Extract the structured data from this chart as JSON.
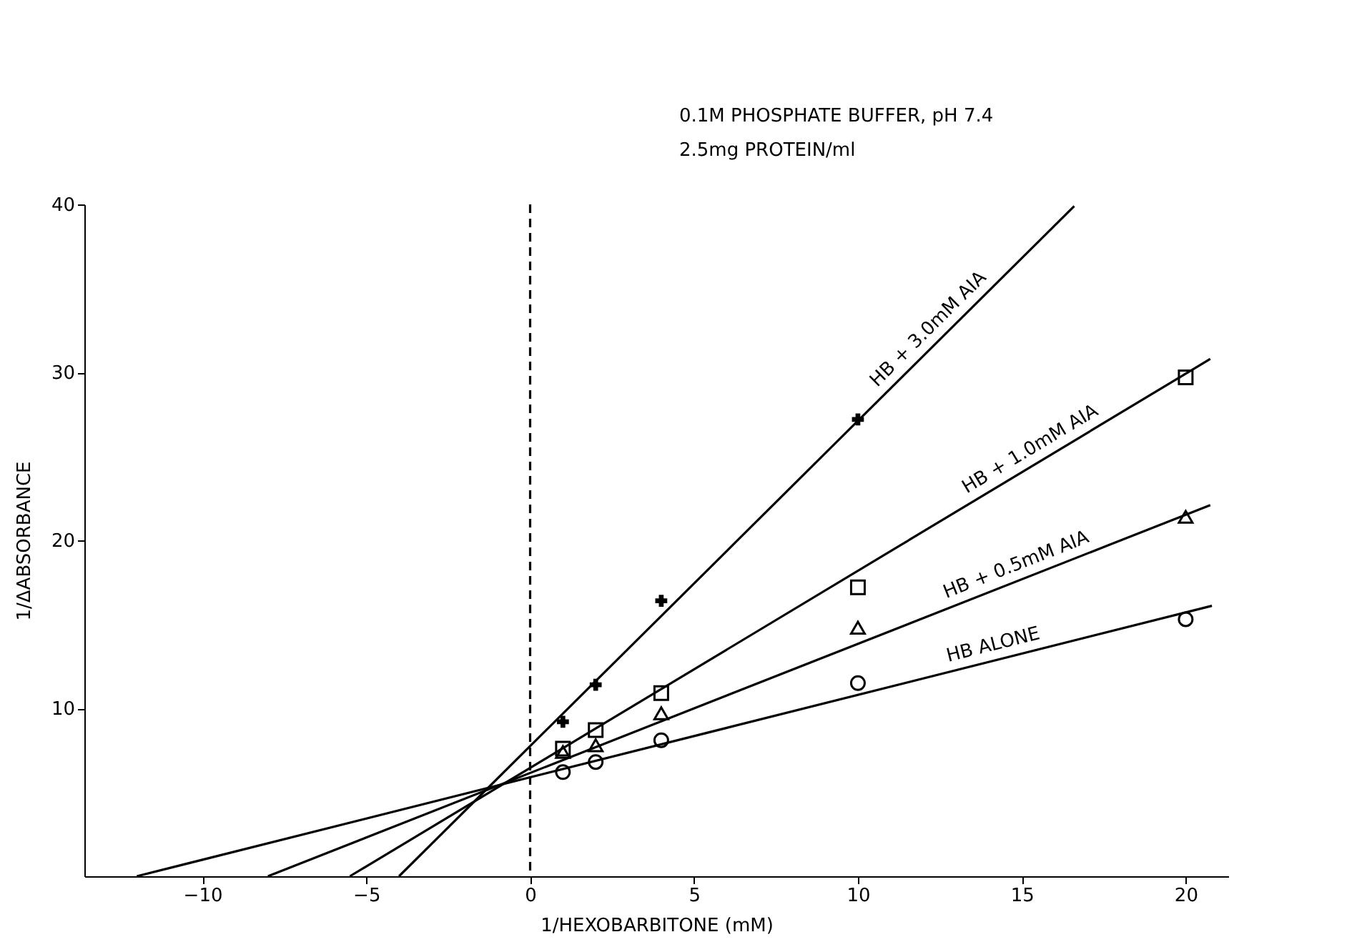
{
  "chart_data": {
    "type": "scatter",
    "xlabel": "1/HEXOBARBITONE (mM)",
    "ylabel": "1/ΔABSORBANCE",
    "annotations": [
      "0.1M PHOSPHATE BUFFER, pH 7.4",
      "2.5mg PROTEIN/ml"
    ],
    "series": [
      {
        "marker": "circle",
        "color": "#000000",
        "x": [
          1,
          2,
          4,
          10,
          20
        ],
        "values": [
          6.2,
          6.8,
          8.1,
          11.5,
          15.3
        ]
      },
      {
        "marker": "triangle",
        "color": "#000000",
        "x": [
          1,
          2,
          4,
          10,
          20
        ],
        "values": [
          7.4,
          7.8,
          9.7,
          14.8,
          21.4
        ]
      },
      {
        "marker": "square",
        "color": "#000000",
        "x": [
          1,
          2,
          4,
          10,
          20
        ],
        "values": [
          7.6,
          8.7,
          10.9,
          17.2,
          29.7
        ]
      },
      {
        "marker": "cross",
        "color": "#000000",
        "x": [
          1,
          2,
          4,
          10
        ],
        "values": [
          9.2,
          11.4,
          16.4,
          27.2
        ]
      },
      {
        "type": "line",
        "name": "HB ALONE",
        "color": "#000000",
        "x": [
          -12.0,
          20.8
        ],
        "values": [
          0,
          16.1
        ]
      },
      {
        "type": "line",
        "name": "HB + 0.5mM AIA",
        "color": "#000000",
        "x": [
          -8.0,
          20.75
        ],
        "values": [
          0,
          22.1
        ]
      },
      {
        "type": "line",
        "name": "HB + 1.0mM AIA",
        "color": "#000000",
        "x": [
          -5.5,
          20.75
        ],
        "values": [
          0,
          30.8
        ]
      },
      {
        "type": "line",
        "name": "HB + 3.0mM AIA",
        "color": "#000000",
        "x": [
          -4.0,
          16.6
        ],
        "values": [
          0,
          39.9
        ]
      }
    ],
    "ref_lines": [
      {
        "axis": "x",
        "value": 0,
        "line_style": "dashed",
        "color": "#000000"
      }
    ],
    "xlim": [
      -13.6,
      21.3
    ],
    "ylim": [
      0,
      40
    ],
    "xticks": [
      -10,
      -5,
      0,
      5,
      10,
      15,
      20
    ],
    "yticks": [
      10,
      20,
      30,
      40
    ],
    "grid": false
  }
}
